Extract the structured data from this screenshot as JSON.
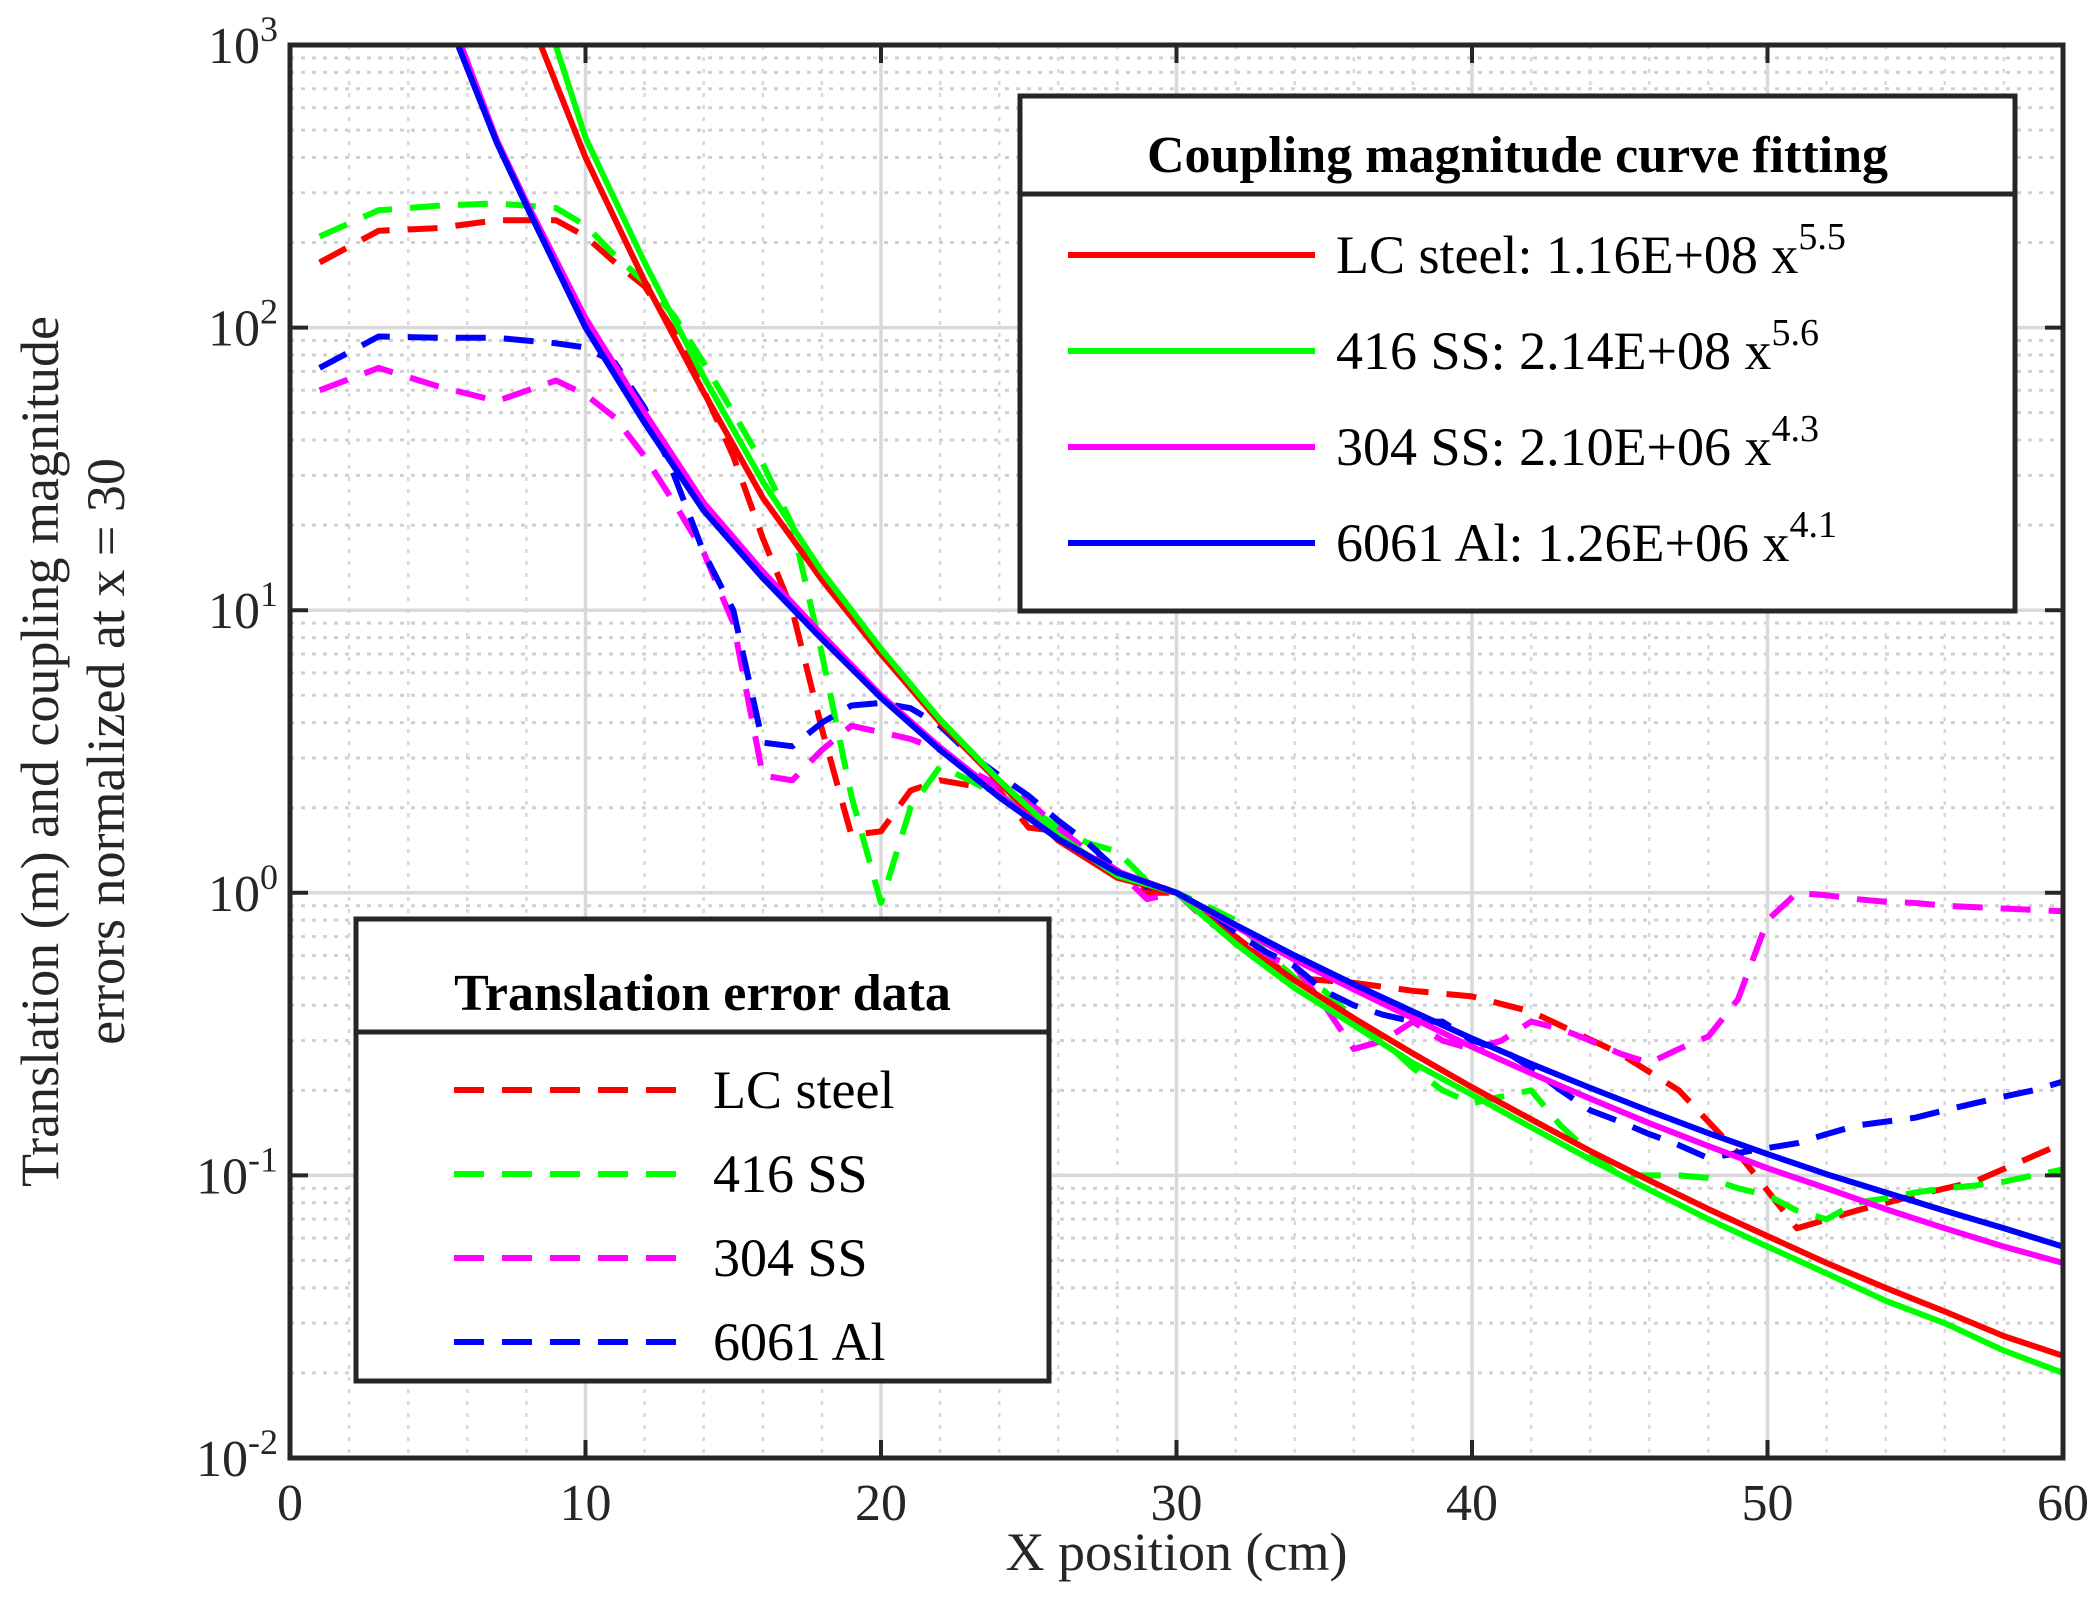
{
  "chart_data": {
    "type": "line",
    "title": "",
    "xlabel": "X position (cm)",
    "ylabel_line1": "Translation (m) and coupling magnitude",
    "ylabel_line2": "errors normalized at x = 30",
    "xlim": [
      0,
      60
    ],
    "ylim": [
      0.01,
      1000
    ],
    "yscale": "log",
    "grid": true,
    "minor_grid": true,
    "x_ticks": [
      0,
      10,
      20,
      30,
      40,
      50,
      60
    ],
    "x_tick_labels": [
      "0",
      "10",
      "20",
      "30",
      "40",
      "50",
      "60"
    ],
    "y_ticks": [
      {
        "value": 0.01,
        "base": "10",
        "exp": "-2"
      },
      {
        "value": 0.1,
        "base": "10",
        "exp": "-1"
      },
      {
        "value": 1,
        "base": "10",
        "exp": "0"
      },
      {
        "value": 10,
        "base": "10",
        "exp": "1"
      },
      {
        "value": 100,
        "base": "10",
        "exp": "2"
      },
      {
        "value": 1000,
        "base": "10",
        "exp": "3"
      }
    ],
    "legends": [
      {
        "title": "Coupling magnitude curve fitting",
        "placement": "top-right",
        "entries": [
          {
            "text": "LC steel: 1.16E+08 x",
            "sup": "5.5",
            "color": "#ff0000",
            "style": "solid"
          },
          {
            "text": "416 SS: 2.14E+08 x",
            "sup": "5.6",
            "color": "#00ff00",
            "style": "solid"
          },
          {
            "text": "304 SS: 2.10E+06 x",
            "sup": "4.3",
            "color": "#ff00ff",
            "style": "solid"
          },
          {
            "text": "6061 Al: 1.26E+06 x",
            "sup": "4.1",
            "color": "#0000ff",
            "style": "solid"
          }
        ]
      },
      {
        "title": "Translation error data",
        "placement": "bottom-left",
        "entries": [
          {
            "text": "LC steel",
            "color": "#ff0000",
            "style": "dashed"
          },
          {
            "text": "416 SS",
            "color": "#00ff00",
            "style": "dashed"
          },
          {
            "text": "304 SS",
            "color": "#ff00ff",
            "style": "dashed"
          },
          {
            "text": "6061 Al",
            "color": "#0000ff",
            "style": "dashed"
          }
        ]
      }
    ],
    "series": [
      {
        "name": "LC steel: 1.16E+08 x^5.5",
        "style": "solid",
        "color": "#ff0000",
        "x": [
          8.5,
          10,
          12,
          14,
          16,
          18,
          20,
          22,
          24,
          26,
          28,
          30,
          32,
          34,
          36,
          38,
          40,
          42,
          44,
          46,
          48,
          50,
          52,
          54,
          56,
          58,
          60
        ],
        "y": [
          990,
          400,
          146,
          59,
          25,
          12.8,
          7.0,
          4.0,
          2.46,
          1.53,
          1.13,
          1.0,
          0.68,
          0.49,
          0.36,
          0.27,
          0.205,
          0.158,
          0.122,
          0.096,
          0.076,
          0.061,
          0.049,
          0.04,
          0.033,
          0.027,
          0.023
        ]
      },
      {
        "name": "416 SS: 2.14E+08 x^5.6",
        "style": "solid",
        "color": "#00ff00",
        "x": [
          9,
          10,
          12,
          14,
          16,
          18,
          20,
          22,
          24,
          26,
          28,
          30,
          32,
          34,
          36,
          38,
          40,
          42,
          44,
          46,
          48,
          50,
          52,
          54,
          56,
          58,
          60
        ],
        "y": [
          990,
          470,
          170,
          67,
          28.5,
          13.7,
          7.3,
          4.1,
          2.5,
          1.6,
          1.15,
          1.0,
          0.66,
          0.46,
          0.34,
          0.25,
          0.193,
          0.148,
          0.114,
          0.089,
          0.07,
          0.056,
          0.045,
          0.036,
          0.03,
          0.024,
          0.02
        ]
      },
      {
        "name": "304 SS: 2.10E+06 x^4.3",
        "style": "solid",
        "color": "#ff00ff",
        "x": [
          5.8,
          7,
          8,
          10,
          12,
          14,
          16,
          18,
          20,
          22,
          24,
          26,
          28,
          30,
          32,
          34,
          36,
          38,
          40,
          42,
          44,
          46,
          48,
          50,
          52,
          54,
          56,
          58,
          60
        ],
        "y": [
          990,
          460,
          278,
          108,
          50,
          24,
          13.7,
          8.2,
          5.0,
          3.27,
          2.23,
          1.55,
          1.19,
          1.0,
          0.76,
          0.58,
          0.455,
          0.36,
          0.285,
          0.23,
          0.187,
          0.153,
          0.127,
          0.106,
          0.09,
          0.076,
          0.065,
          0.056,
          0.049
        ]
      },
      {
        "name": "6061 Al: 1.26E+06 x^4.1",
        "style": "solid",
        "color": "#0000ff",
        "x": [
          5.7,
          7,
          8,
          10,
          12,
          14,
          16,
          18,
          20,
          22,
          24,
          26,
          28,
          30,
          32,
          34,
          36,
          38,
          40,
          42,
          44,
          46,
          48,
          50,
          52,
          54,
          56,
          58,
          60
        ],
        "y": [
          990,
          450,
          270,
          100,
          46,
          22.5,
          13,
          7.9,
          4.9,
          3.2,
          2.18,
          1.55,
          1.18,
          1.0,
          0.77,
          0.6,
          0.475,
          0.38,
          0.305,
          0.248,
          0.204,
          0.169,
          0.141,
          0.119,
          0.101,
          0.087,
          0.075,
          0.065,
          0.056
        ]
      },
      {
        "name": "LC steel",
        "style": "dashed",
        "color": "#ff0000",
        "x": [
          1,
          3,
          5,
          7,
          9,
          10,
          11,
          12,
          13,
          14,
          15,
          16,
          17,
          18,
          19,
          20,
          21,
          22,
          23,
          24,
          25,
          26,
          27,
          28,
          29,
          30,
          31,
          32,
          33,
          34,
          36,
          38,
          40,
          42,
          45,
          47,
          49,
          51,
          53,
          55,
          57,
          60
        ],
        "y": [
          170,
          220,
          225,
          240,
          240,
          210,
          170,
          140,
          97,
          60,
          35,
          18,
          10,
          3.8,
          1.6,
          1.65,
          2.3,
          2.5,
          2.4,
          2.3,
          1.7,
          1.65,
          1.3,
          1.2,
          1.0,
          1.0,
          0.85,
          0.7,
          0.58,
          0.5,
          0.48,
          0.45,
          0.43,
          0.38,
          0.27,
          0.2,
          0.12,
          0.065,
          0.075,
          0.085,
          0.095,
          0.13
        ]
      },
      {
        "name": "416 SS",
        "style": "dashed",
        "color": "#00ff00",
        "x": [
          1,
          3,
          5,
          7,
          9,
          10,
          11,
          12,
          13,
          14,
          15,
          16,
          17,
          18,
          19,
          20,
          21,
          22,
          23,
          24,
          25,
          26,
          27,
          28,
          29,
          30,
          31,
          32,
          33,
          34,
          35,
          36,
          37,
          38,
          39,
          40,
          41,
          42,
          43,
          44,
          45,
          46,
          47,
          48,
          49,
          50,
          51,
          52,
          53,
          54,
          55,
          56,
          57,
          58,
          59,
          60
        ],
        "y": [
          210,
          260,
          270,
          275,
          265,
          230,
          180,
          145,
          110,
          75,
          50,
          33,
          20,
          7.0,
          2.2,
          0.92,
          2.0,
          2.8,
          2.5,
          2.2,
          2.0,
          1.7,
          1.5,
          1.4,
          1.1,
          1.0,
          0.9,
          0.8,
          0.62,
          0.5,
          0.45,
          0.36,
          0.3,
          0.24,
          0.2,
          0.18,
          0.19,
          0.2,
          0.15,
          0.12,
          0.1,
          0.1,
          0.1,
          0.098,
          0.09,
          0.085,
          0.075,
          0.07,
          0.08,
          0.083,
          0.087,
          0.09,
          0.092,
          0.095,
          0.1,
          0.105
        ]
      },
      {
        "name": "304 SS",
        "style": "dashed",
        "color": "#ff00ff",
        "x": [
          1,
          3,
          5,
          7,
          9,
          10,
          11,
          12,
          13,
          14,
          15,
          16,
          17,
          18,
          19,
          20,
          21,
          22,
          23,
          24,
          25,
          26,
          27,
          28,
          29,
          30,
          31,
          32,
          33,
          34,
          35,
          36,
          37,
          38,
          39,
          40,
          41,
          42,
          43,
          44,
          45,
          46,
          47,
          48,
          49,
          50,
          51,
          52,
          53,
          54,
          55,
          56,
          57,
          58,
          59,
          60
        ],
        "y": [
          60,
          72,
          62,
          55,
          65,
          58,
          48,
          35,
          24,
          16,
          9.0,
          2.6,
          2.5,
          3.2,
          3.9,
          3.7,
          3.5,
          3.2,
          2.7,
          2.4,
          2.1,
          1.7,
          1.4,
          1.2,
          0.95,
          1.0,
          0.8,
          0.68,
          0.6,
          0.55,
          0.4,
          0.28,
          0.3,
          0.35,
          0.3,
          0.28,
          0.3,
          0.35,
          0.33,
          0.3,
          0.27,
          0.25,
          0.28,
          0.31,
          0.42,
          0.8,
          1.0,
          0.98,
          0.95,
          0.93,
          0.92,
          0.9,
          0.89,
          0.88,
          0.87,
          0.86
        ]
      },
      {
        "name": "6061 Al",
        "style": "dashed",
        "color": "#0000ff",
        "x": [
          1,
          3,
          5,
          7,
          9,
          10,
          11,
          12,
          13,
          14,
          15,
          16,
          17,
          18,
          19,
          20,
          21,
          22,
          23,
          24,
          25,
          26,
          27,
          28,
          29,
          30,
          31,
          32,
          33,
          34,
          35,
          36,
          37,
          38,
          39,
          40,
          41,
          42,
          43,
          44,
          45,
          46,
          47,
          48,
          49,
          50,
          51,
          52,
          53,
          54,
          55,
          56,
          57,
          58,
          59,
          60
        ],
        "y": [
          72,
          93,
          92,
          92,
          88,
          85,
          75,
          52,
          30,
          16,
          10,
          3.4,
          3.3,
          4.0,
          4.6,
          4.7,
          4.5,
          3.9,
          3.1,
          2.6,
          2.2,
          1.8,
          1.5,
          1.2,
          1.05,
          1.0,
          0.85,
          0.72,
          0.62,
          0.55,
          0.45,
          0.4,
          0.37,
          0.35,
          0.35,
          0.3,
          0.28,
          0.24,
          0.2,
          0.17,
          0.155,
          0.14,
          0.128,
          0.115,
          0.12,
          0.125,
          0.13,
          0.14,
          0.15,
          0.155,
          0.16,
          0.17,
          0.18,
          0.19,
          0.2,
          0.215
        ]
      }
    ]
  }
}
